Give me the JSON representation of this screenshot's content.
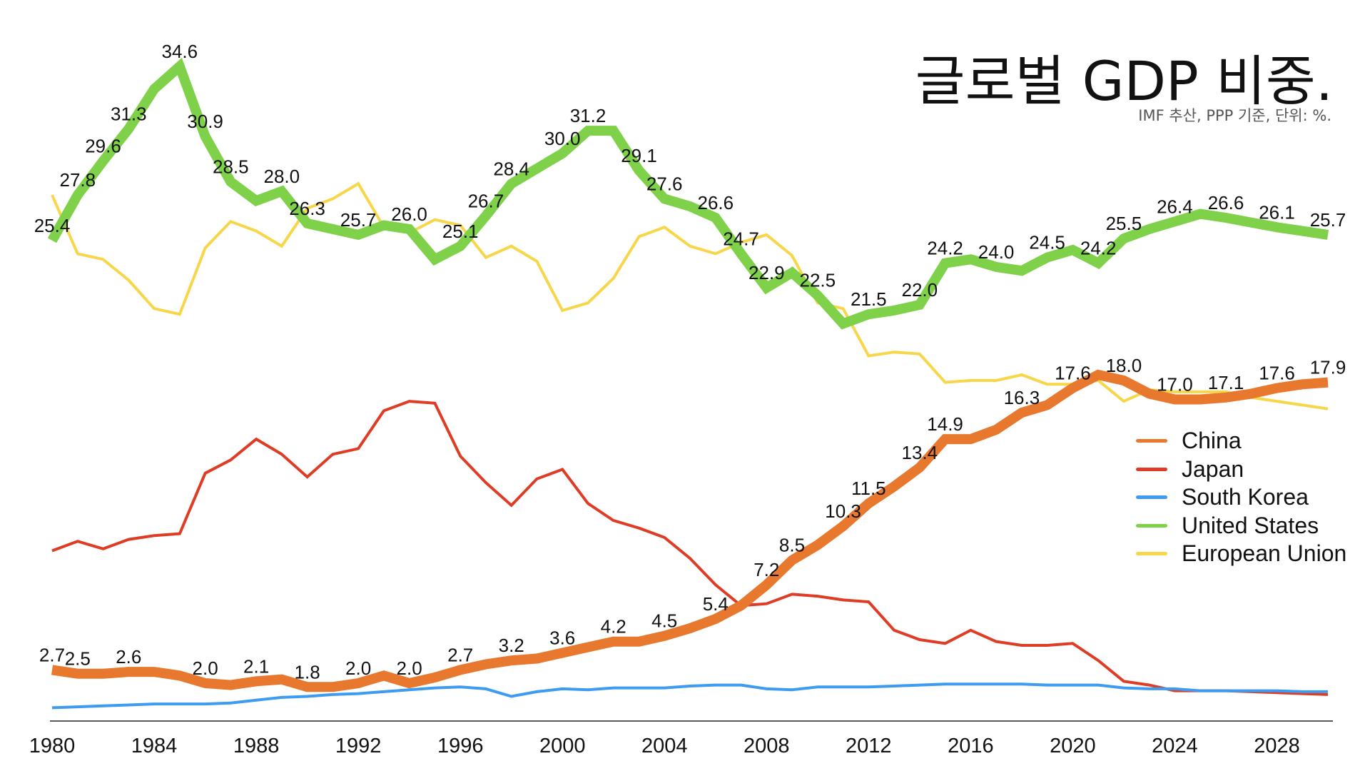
{
  "title": "글로벌 GDP 비중.",
  "subtitle": "IMF 추산, PPP 기준, 단위: %.",
  "chart_data": {
    "type": "line",
    "title": "글로벌 GDP 비중.",
    "subtitle": "IMF 추산, PPP 기준, 단위: %.",
    "xlabel": "",
    "ylabel": "",
    "x": [
      1980,
      1981,
      1982,
      1983,
      1984,
      1985,
      1986,
      1987,
      1988,
      1989,
      1990,
      1991,
      1992,
      1993,
      1994,
      1995,
      1996,
      1997,
      1998,
      1999,
      2000,
      2001,
      2002,
      2003,
      2004,
      2005,
      2006,
      2007,
      2008,
      2009,
      2010,
      2011,
      2012,
      2013,
      2014,
      2015,
      2016,
      2017,
      2018,
      2019,
      2020,
      2021,
      2022,
      2023,
      2024,
      2025,
      2026,
      2027,
      2028,
      2029,
      2030
    ],
    "x_ticks": [
      1980,
      1984,
      1988,
      1992,
      1996,
      2000,
      2004,
      2008,
      2012,
      2016,
      2020,
      2024,
      2028
    ],
    "ylim": [
      0,
      36
    ],
    "grid": false,
    "legend_position": "right",
    "series": [
      {
        "name": "China",
        "color": "#E8782E",
        "width": 14,
        "labeled": true,
        "values": [
          2.7,
          2.5,
          2.5,
          2.6,
          2.6,
          2.4,
          2.0,
          1.9,
          2.1,
          2.2,
          1.8,
          1.8,
          2.0,
          2.4,
          2.0,
          2.3,
          2.7,
          3.0,
          3.2,
          3.3,
          3.6,
          3.9,
          4.2,
          4.2,
          4.5,
          4.9,
          5.4,
          6.1,
          7.2,
          8.5,
          9.3,
          10.3,
          11.5,
          12.4,
          13.4,
          14.9,
          14.9,
          15.4,
          16.3,
          16.7,
          17.6,
          18.3,
          18.0,
          17.3,
          17.0,
          17.0,
          17.1,
          17.3,
          17.6,
          17.8,
          17.9
        ],
        "label_values": [
          2.7,
          2.5,
          2.6,
          2.0,
          2.1,
          1.8,
          2.0,
          2.0,
          2.7,
          3.2,
          3.6,
          4.2,
          4.5,
          5.4,
          7.2,
          8.5,
          10.3,
          11.5,
          13.4,
          14.9,
          16.3,
          17.6,
          18.0,
          17.0,
          17.1,
          17.6,
          17.9
        ]
      },
      {
        "name": "Japan",
        "color": "#DE3C25",
        "width": 4,
        "labeled": false,
        "values": [
          9.0,
          9.5,
          9.1,
          9.6,
          9.8,
          9.9,
          13.1,
          13.8,
          14.9,
          14.1,
          12.9,
          14.1,
          14.4,
          16.4,
          16.9,
          16.8,
          14.0,
          12.6,
          11.4,
          12.8,
          13.3,
          11.5,
          10.6,
          10.2,
          9.7,
          8.6,
          7.2,
          6.1,
          6.2,
          6.7,
          6.6,
          6.4,
          6.3,
          4.8,
          4.3,
          4.1,
          4.8,
          4.2,
          4.0,
          4.0,
          4.1,
          3.2,
          2.1,
          1.9,
          1.6,
          1.6,
          1.6,
          1.55,
          1.5,
          1.45,
          1.4
        ],
        "label_values": []
      },
      {
        "name": "South Korea",
        "color": "#3D9BF0",
        "width": 4,
        "labeled": false,
        "values": [
          0.7,
          0.75,
          0.8,
          0.85,
          0.9,
          0.9,
          0.9,
          0.95,
          1.1,
          1.25,
          1.3,
          1.4,
          1.45,
          1.55,
          1.65,
          1.75,
          1.8,
          1.7,
          1.3,
          1.55,
          1.7,
          1.65,
          1.75,
          1.75,
          1.75,
          1.85,
          1.9,
          1.9,
          1.7,
          1.65,
          1.8,
          1.8,
          1.8,
          1.85,
          1.9,
          1.95,
          1.95,
          1.95,
          1.95,
          1.9,
          1.9,
          1.9,
          1.75,
          1.7,
          1.7,
          1.6,
          1.6,
          1.6,
          1.6,
          1.55,
          1.55
        ],
        "label_values": []
      },
      {
        "name": "United States",
        "color": "#7ED148",
        "width": 14,
        "labeled": true,
        "values": [
          25.4,
          27.8,
          29.6,
          31.3,
          33.4,
          34.6,
          30.9,
          28.5,
          27.5,
          28.0,
          26.3,
          26.0,
          25.7,
          26.2,
          26.0,
          24.4,
          25.1,
          26.7,
          28.4,
          29.2,
          30.0,
          31.2,
          31.2,
          29.1,
          27.6,
          27.2,
          26.6,
          24.7,
          22.9,
          23.7,
          22.5,
          21.0,
          21.5,
          21.7,
          22.0,
          24.2,
          24.4,
          24.0,
          23.8,
          24.5,
          24.9,
          24.2,
          25.5,
          26.0,
          26.4,
          26.8,
          26.6,
          26.35,
          26.1,
          25.9,
          25.7
        ],
        "label_values": [
          25.4,
          27.8,
          29.6,
          31.3,
          34.6,
          30.9,
          28.5,
          28.0,
          26.3,
          25.7,
          26.0,
          25.1,
          26.7,
          28.4,
          30.0,
          31.2,
          29.1,
          27.6,
          26.6,
          24.7,
          22.9,
          22.5,
          21.5,
          22.0,
          24.2,
          24.0,
          24.5,
          24.2,
          25.5,
          26.4,
          26.6,
          26.1,
          25.7
        ]
      },
      {
        "name": "European Union",
        "color": "#F7D64A",
        "width": 4,
        "labeled": false,
        "values": [
          27.8,
          24.7,
          24.4,
          23.3,
          21.8,
          21.5,
          25.0,
          26.4,
          25.9,
          25.1,
          27.1,
          27.6,
          28.4,
          26.1,
          25.8,
          26.5,
          26.2,
          24.5,
          25.1,
          24.3,
          21.7,
          22.1,
          23.4,
          25.6,
          26.1,
          25.1,
          24.7,
          25.3,
          25.7,
          24.6,
          22.1,
          21.8,
          19.3,
          19.5,
          19.4,
          17.9,
          18.0,
          18.0,
          18.3,
          17.8,
          17.8,
          18.0,
          16.9,
          17.5,
          17.4,
          17.4,
          17.4,
          17.1,
          16.9,
          16.7,
          16.5
        ],
        "label_values": []
      }
    ]
  }
}
